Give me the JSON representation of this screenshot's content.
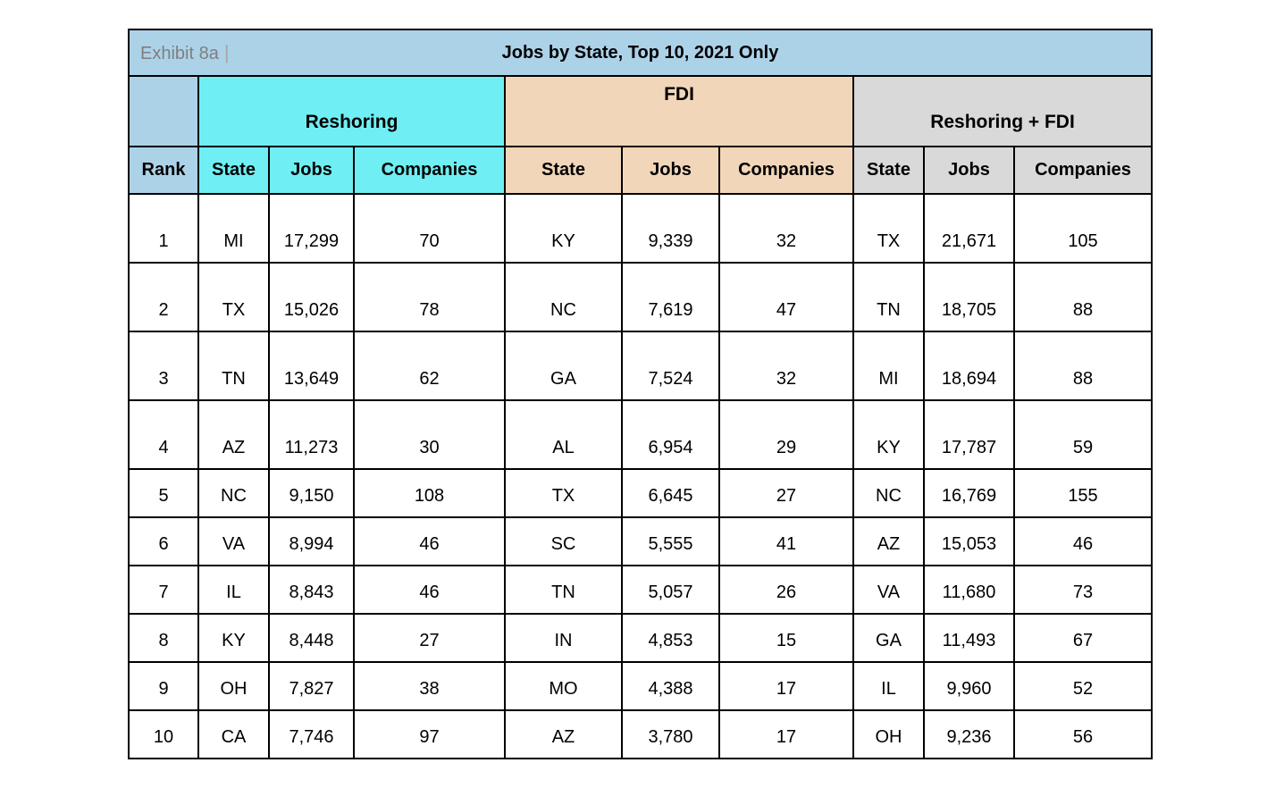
{
  "title": {
    "exhibit_label": "Exhibit 8a",
    "separator": "|",
    "text": "Jobs by State, Top 10, 2021 Only"
  },
  "groups": {
    "reshoring": "Reshoring",
    "fdi": "FDI",
    "combined": "Reshoring + FDI"
  },
  "column_headers": {
    "rank": "Rank",
    "state": "State",
    "jobs": "Jobs",
    "companies": "Companies"
  },
  "rows": [
    {
      "rank": "1",
      "reshoring": {
        "state": "MI",
        "jobs": "17,299",
        "companies": "70"
      },
      "fdi": {
        "state": "KY",
        "jobs": "9,339",
        "companies": "32"
      },
      "combined": {
        "state": "TX",
        "jobs": "21,671",
        "companies": "105"
      }
    },
    {
      "rank": "2",
      "reshoring": {
        "state": "TX",
        "jobs": "15,026",
        "companies": "78"
      },
      "fdi": {
        "state": "NC",
        "jobs": "7,619",
        "companies": "47"
      },
      "combined": {
        "state": "TN",
        "jobs": "18,705",
        "companies": "88"
      }
    },
    {
      "rank": "3",
      "reshoring": {
        "state": "TN",
        "jobs": "13,649",
        "companies": "62"
      },
      "fdi": {
        "state": "GA",
        "jobs": "7,524",
        "companies": "32"
      },
      "combined": {
        "state": "MI",
        "jobs": "18,694",
        "companies": "88"
      }
    },
    {
      "rank": "4",
      "reshoring": {
        "state": "AZ",
        "jobs": "11,273",
        "companies": "30"
      },
      "fdi": {
        "state": "AL",
        "jobs": "6,954",
        "companies": "29"
      },
      "combined": {
        "state": "KY",
        "jobs": "17,787",
        "companies": "59"
      }
    },
    {
      "rank": "5",
      "reshoring": {
        "state": "NC",
        "jobs": "9,150",
        "companies": "108"
      },
      "fdi": {
        "state": "TX",
        "jobs": "6,645",
        "companies": "27"
      },
      "combined": {
        "state": "NC",
        "jobs": "16,769",
        "companies": "155"
      }
    },
    {
      "rank": "6",
      "reshoring": {
        "state": "VA",
        "jobs": "8,994",
        "companies": "46"
      },
      "fdi": {
        "state": "SC",
        "jobs": "5,555",
        "companies": "41"
      },
      "combined": {
        "state": "AZ",
        "jobs": "15,053",
        "companies": "46"
      }
    },
    {
      "rank": "7",
      "reshoring": {
        "state": "IL",
        "jobs": "8,843",
        "companies": "46"
      },
      "fdi": {
        "state": "TN",
        "jobs": "5,057",
        "companies": "26"
      },
      "combined": {
        "state": "VA",
        "jobs": "11,680",
        "companies": "73"
      }
    },
    {
      "rank": "8",
      "reshoring": {
        "state": "KY",
        "jobs": "8,448",
        "companies": "27"
      },
      "fdi": {
        "state": "IN",
        "jobs": "4,853",
        "companies": "15"
      },
      "combined": {
        "state": "GA",
        "jobs": "11,493",
        "companies": "67"
      }
    },
    {
      "rank": "9",
      "reshoring": {
        "state": "OH",
        "jobs": "7,827",
        "companies": "38"
      },
      "fdi": {
        "state": "MO",
        "jobs": "4,388",
        "companies": "17"
      },
      "combined": {
        "state": "IL",
        "jobs": "9,960",
        "companies": "52"
      }
    },
    {
      "rank": "10",
      "reshoring": {
        "state": "CA",
        "jobs": "7,746",
        "companies": "97"
      },
      "fdi": {
        "state": "AZ",
        "jobs": "3,780",
        "companies": "17"
      },
      "combined": {
        "state": "OH",
        "jobs": "9,236",
        "companies": "56"
      }
    }
  ],
  "colors": {
    "title_bar_bg": "#ACD2E8",
    "reshoring_bg": "#6FEFF4",
    "fdi_bg": "#F2D6B9",
    "combined_bg": "#D9D9D9",
    "data_bg": "#FFFFFF",
    "border": "#000000",
    "title_text": "#000000",
    "exhibit_label_text": "#7F7F7F"
  }
}
